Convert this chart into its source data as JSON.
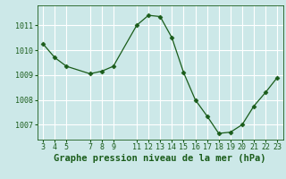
{
  "x": [
    3,
    4,
    5,
    7,
    8,
    9,
    11,
    12,
    13,
    14,
    15,
    16,
    17,
    18,
    19,
    20,
    21,
    22,
    23
  ],
  "y": [
    1010.25,
    1009.7,
    1009.35,
    1009.05,
    1009.15,
    1009.35,
    1011.0,
    1011.4,
    1011.35,
    1010.5,
    1009.1,
    1008.0,
    1007.35,
    1006.65,
    1006.7,
    1007.0,
    1007.75,
    1008.3,
    1008.9
  ],
  "line_color": "#1a5c1a",
  "marker": "D",
  "marker_size": 2.5,
  "bg_color": "#cce8e8",
  "grid_color": "#ffffff",
  "xlabel": "Graphe pression niveau de la mer (hPa)",
  "xlabel_color": "#1a5c1a",
  "xlabel_fontsize": 7.5,
  "tick_color": "#1a5c1a",
  "tick_fontsize": 6,
  "yticks": [
    1007,
    1008,
    1009,
    1010,
    1011
  ],
  "xticks": [
    3,
    4,
    5,
    7,
    8,
    9,
    11,
    12,
    13,
    14,
    15,
    16,
    17,
    18,
    19,
    20,
    21,
    22,
    23
  ],
  "ylim": [
    1006.4,
    1011.8
  ],
  "xlim": [
    2.5,
    23.5
  ]
}
